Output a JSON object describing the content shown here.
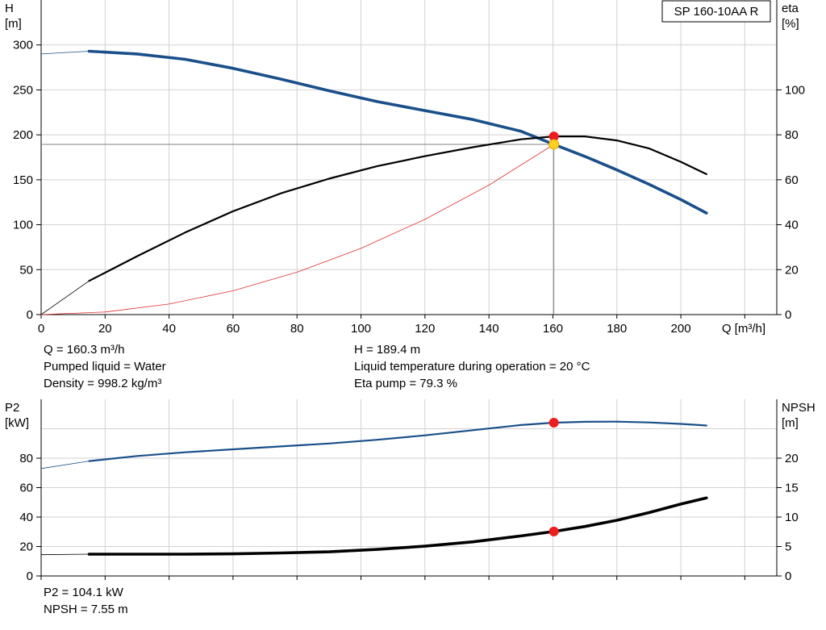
{
  "chart_data": [
    {
      "type": "line",
      "title": "SP 160-10AA R",
      "xlabel": "Q [m³/h]",
      "ylabel_left_name": "H",
      "ylabel_left_unit": "[m]",
      "ylabel_right_name": "eta",
      "ylabel_right_unit": "[%]",
      "xlim": [
        0,
        230
      ],
      "ylim_left": [
        0,
        350
      ],
      "ylim_right": [
        0,
        140
      ],
      "grid": true,
      "x_ticks": [
        "0",
        "20",
        "40",
        "60",
        "80",
        "100",
        "120",
        "140",
        "160",
        "180",
        "200"
      ],
      "y_left_ticks": [
        "0",
        "50",
        "100",
        "150",
        "200",
        "250",
        "300"
      ],
      "y_right_ticks": [
        "0",
        "20",
        "40",
        "60",
        "80",
        "100"
      ],
      "series": [
        {
          "axis": "left",
          "color": "#1a4f8a",
          "x": [
            15,
            30,
            45,
            60,
            75,
            90,
            105,
            120,
            135,
            150,
            160.3,
            170,
            180,
            190,
            200,
            208
          ],
          "y": [
            293,
            290,
            284,
            274,
            262,
            249,
            237,
            227,
            217,
            204,
            189.4,
            176,
            161,
            145,
            128,
            113
          ]
        },
        {
          "axis": "right",
          "color": "#000000",
          "x": [
            15,
            30,
            45,
            60,
            75,
            90,
            105,
            120,
            135,
            150,
            160.3,
            170,
            180,
            190,
            200,
            208
          ],
          "y": [
            15,
            26,
            36.5,
            46,
            54,
            60.5,
            66,
            70.5,
            74.5,
            78,
            79.3,
            79.3,
            77.5,
            74,
            68,
            62.5
          ]
        },
        {
          "axis": "left",
          "color": "#e03030",
          "x": [
            0,
            20,
            40,
            60,
            80,
            100,
            120,
            140,
            160.3
          ],
          "y": [
            0,
            2.9,
            11.8,
            26.5,
            47.2,
            73.7,
            106,
            144,
            189.4
          ]
        }
      ],
      "extension_lines": [
        {
          "axis": "left",
          "color": "#1a4f8a",
          "x": [
            0,
            15
          ],
          "y": [
            290,
            293
          ]
        },
        {
          "axis": "right",
          "color": "#000000",
          "x": [
            0,
            15
          ],
          "y": [
            0,
            15
          ]
        }
      ],
      "operating_point": {
        "x": 160.3,
        "h": 189.4,
        "eta": 79.3
      }
    },
    {
      "type": "line",
      "ylabel_left_name": "P2",
      "ylabel_left_unit": "[kW]",
      "ylabel_right_name": "NPSH",
      "ylabel_right_unit": "[m]",
      "xlim": [
        0,
        230
      ],
      "ylim_left": [
        0,
        120
      ],
      "ylim_right": [
        0,
        30
      ],
      "grid": true,
      "y_left_ticks": [
        "0",
        "20",
        "40",
        "60",
        "80"
      ],
      "y_right_ticks": [
        "0",
        "5",
        "10",
        "15",
        "20"
      ],
      "series": [
        {
          "axis": "left",
          "color": "#1a4f8a",
          "x": [
            15,
            30,
            45,
            60,
            75,
            90,
            105,
            120,
            135,
            150,
            160.3,
            170,
            180,
            190,
            200,
            208
          ],
          "y": [
            78,
            81.5,
            84,
            86,
            88,
            90,
            92.5,
            95.5,
            99,
            102.5,
            104.1,
            104.7,
            104.8,
            104.3,
            103.3,
            102.2
          ]
        },
        {
          "axis": "right",
          "color": "#000000",
          "x": [
            15,
            30,
            45,
            60,
            75,
            90,
            105,
            120,
            135,
            150,
            160.3,
            170,
            180,
            190,
            200,
            208
          ],
          "y": [
            3.7,
            3.7,
            3.7,
            3.75,
            3.9,
            4.1,
            4.5,
            5.05,
            5.8,
            6.8,
            7.55,
            8.4,
            9.45,
            10.75,
            12.2,
            13.25
          ]
        }
      ],
      "extension_lines": [
        {
          "axis": "left",
          "color": "#1a4f8a",
          "x": [
            0,
            15
          ],
          "y": [
            73,
            78
          ]
        },
        {
          "axis": "right",
          "color": "#000000",
          "x": [
            0,
            15
          ],
          "y": [
            3.6,
            3.7
          ]
        }
      ],
      "operating_point": {
        "x": 160.3,
        "p2": 104.1,
        "npsh": 7.55
      }
    }
  ],
  "info": {
    "q": "Q = 160.3 m³/h",
    "liquid": "Pumped liquid = Water",
    "density": "Density = 998.2 kg/m³",
    "h": "H = 189.4 m",
    "temp": "Liquid temperature during operation = 20 °C",
    "eta": "Eta pump = 79.3 %",
    "p2": "P2 = 104.1 kW",
    "npsh": "NPSH = 7.55 m"
  }
}
